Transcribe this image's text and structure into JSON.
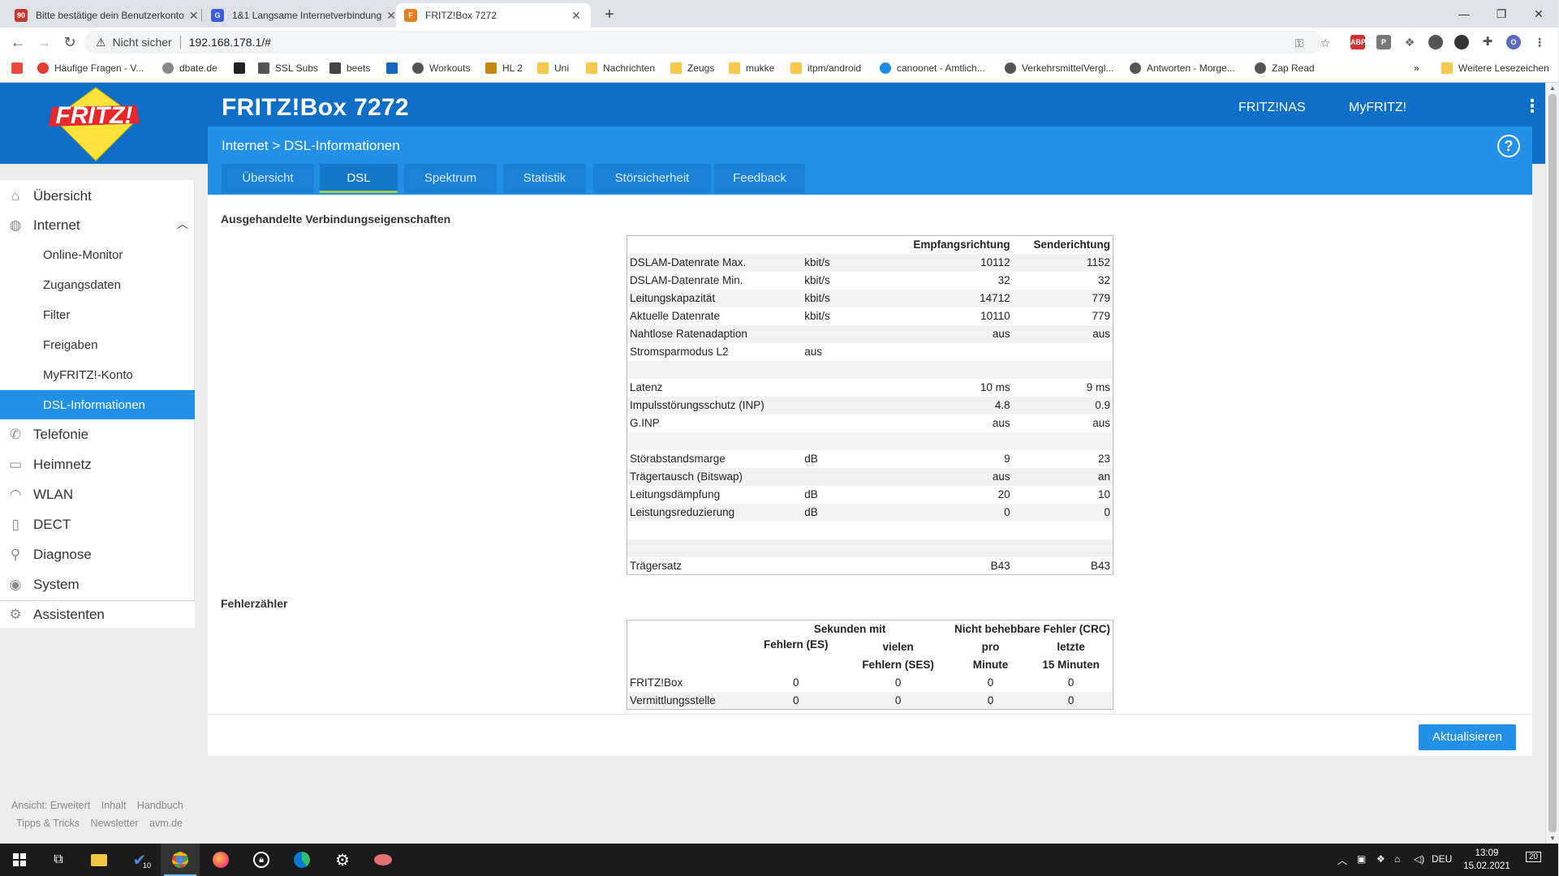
{
  "browser": {
    "tabs": [
      {
        "title": "Bitte bestätige dein Benutzerkonto",
        "favicon_text": "90",
        "favicon_color": "#c0392b"
      },
      {
        "title": "1&1 Langsame Internetverbindung",
        "favicon_text": "G",
        "favicon_color": "#3b5bdb"
      },
      {
        "title": "FRITZ!Box 7272",
        "favicon_text": "F",
        "favicon_color": "#e67e22"
      }
    ],
    "insecure_label": "Nicht sicher",
    "url": "192.168.178.1/#",
    "extensions": [
      "ABP",
      "P"
    ],
    "profile_initial": "O",
    "bookmarks": [
      "Häufige Fragen - V...",
      "dbate.de",
      "",
      "SSL Subs",
      "beets",
      "",
      "Workouts",
      "HL 2",
      "Uni",
      "Nachrichten",
      "Zeugs",
      "mukke",
      "itpm/android",
      "canoonet - Amtlich...",
      "VerkehrsmittelVergl...",
      "Antworten - Morge...",
      "Zap Read"
    ],
    "more_bookmarks": "Weitere Lesezeichen"
  },
  "header": {
    "logo_text": "FRITZ!",
    "title": "FRITZ!Box 7272",
    "links": [
      "FRITZ!NAS",
      "MyFRITZ!"
    ],
    "breadcrumb": "Internet > DSL-Informationen",
    "help_glyph": "?"
  },
  "page_tabs": [
    "Übersicht",
    "DSL",
    "Spektrum",
    "Statistik",
    "Störsicherheit",
    "Feedback"
  ],
  "sidebar": {
    "items": [
      {
        "label": "Übersicht",
        "icon": "home-icon"
      },
      {
        "label": "Internet",
        "icon": "globe-icon"
      },
      {
        "label": "Telefonie",
        "icon": "phone-icon"
      },
      {
        "label": "Heimnetz",
        "icon": "network-icon"
      },
      {
        "label": "WLAN",
        "icon": "wifi-icon"
      },
      {
        "label": "DECT",
        "icon": "dect-icon"
      },
      {
        "label": "Diagnose",
        "icon": "diagnose-icon"
      },
      {
        "label": "System",
        "icon": "system-icon"
      },
      {
        "label": "Assistenten",
        "icon": "wizard-icon"
      }
    ],
    "sub_items": [
      "Online-Monitor",
      "Zugangsdaten",
      "Filter",
      "Freigaben",
      "MyFRITZ!-Konto",
      "DSL-Informationen"
    ]
  },
  "connection": {
    "title": "Ausgehandelte Verbindungseigenschaften",
    "headers": [
      "",
      "",
      "Empfangsrichtung",
      "Senderichtung"
    ],
    "rows": [
      [
        "DSLAM-Datenrate Max.",
        "kbit/s",
        "10112",
        "1152"
      ],
      [
        "DSLAM-Datenrate Min.",
        "kbit/s",
        "32",
        "32"
      ],
      [
        "Leitungskapazität",
        "kbit/s",
        "14712",
        "779"
      ],
      [
        "Aktuelle Datenrate",
        "kbit/s",
        "10110",
        "779"
      ],
      [
        "Nahtlose Ratenadaption",
        "",
        "aus",
        "aus"
      ],
      [
        "Stromsparmodus L2",
        "aus",
        "",
        ""
      ],
      [
        "",
        "",
        "",
        ""
      ],
      [
        "Latenz",
        "",
        "10 ms",
        "9 ms"
      ],
      [
        "Impulsstörungsschutz (INP)",
        "",
        "4.8",
        "0.9"
      ],
      [
        "G.INP",
        "",
        "aus",
        "aus"
      ],
      [
        "",
        "",
        "",
        ""
      ],
      [
        "Störabstandsmarge",
        "dB",
        "9",
        "23"
      ],
      [
        "Trägertausch (Bitswap)",
        "",
        "aus",
        "an"
      ],
      [
        "Leitungsdämpfung",
        "dB",
        "20",
        "10"
      ],
      [
        "Leistungsreduzierung",
        "dB",
        "0",
        "0"
      ],
      [
        "",
        "",
        "",
        ""
      ],
      [
        "",
        "",
        "",
        ""
      ],
      [
        "Trägersatz",
        "",
        "B43",
        "B43"
      ]
    ]
  },
  "errors": {
    "title": "Fehlerzähler",
    "group_seconds": "Sekunden mit",
    "group_crc": "Nicht behebbare Fehler (CRC)",
    "col_es": "Fehlern (ES)",
    "col_ses_1": "vielen",
    "col_ses_2": "Fehlern (SES)",
    "col_min_1": "pro",
    "col_min_2": "Minute",
    "col_15_1": "letzte",
    "col_15_2": "15 Minuten",
    "rows": [
      [
        "FRITZ!Box",
        "0",
        "0",
        "0",
        "0"
      ],
      [
        "Vermittlungsstelle",
        "0",
        "0",
        "0",
        "0"
      ]
    ]
  },
  "refresh_label": "Aktualisieren",
  "footer": {
    "line1": [
      "Ansicht: Erweitert",
      "Inhalt",
      "Handbuch"
    ],
    "line2": [
      "Tipps & Tricks",
      "Newsletter",
      "avm.de"
    ]
  },
  "taskbar": {
    "language": "DEU",
    "time": "13:09",
    "date": "15.02.2021",
    "notification_count": "20",
    "todo_badge": "10"
  }
}
